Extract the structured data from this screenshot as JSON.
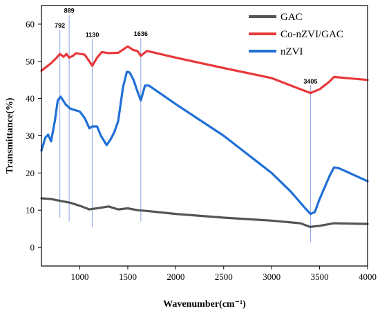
{
  "chart_data": {
    "type": "line",
    "xlabel": "Wavenumber(cm⁻¹)",
    "ylabel": "Transmittance(%)",
    "xlim": [
      600,
      4000
    ],
    "ylim": [
      -5,
      65
    ],
    "x_ticks": [
      1000,
      1500,
      2000,
      2500,
      3000,
      3500,
      4000
    ],
    "y_ticks": [
      0,
      10,
      20,
      30,
      40,
      50,
      60
    ],
    "grid": false,
    "legend_position": "top-right",
    "series": [
      {
        "name": "GAC",
        "color": "#555555",
        "points": [
          [
            600,
            13.2
          ],
          [
            700,
            13
          ],
          [
            800,
            12.5
          ],
          [
            900,
            12
          ],
          [
            1000,
            11.2
          ],
          [
            1100,
            10.2
          ],
          [
            1200,
            10.6
          ],
          [
            1300,
            11
          ],
          [
            1400,
            10.2
          ],
          [
            1500,
            10.5
          ],
          [
            1600,
            10
          ],
          [
            1700,
            9.8
          ],
          [
            2000,
            9
          ],
          [
            2500,
            8
          ],
          [
            3000,
            7.2
          ],
          [
            3300,
            6.5
          ],
          [
            3400,
            5.5
          ],
          [
            3500,
            5.8
          ],
          [
            3650,
            6.5
          ],
          [
            4000,
            6.3
          ]
        ]
      },
      {
        "name": "Co-nZVI/GAC",
        "color": "#e8383a",
        "points": [
          [
            600,
            47.5
          ],
          [
            700,
            49.5
          ],
          [
            760,
            51
          ],
          [
            792,
            52
          ],
          [
            830,
            51.2
          ],
          [
            860,
            52
          ],
          [
            889,
            51
          ],
          [
            930,
            51.5
          ],
          [
            960,
            52.2
          ],
          [
            1050,
            51.8
          ],
          [
            1100,
            50
          ],
          [
            1130,
            48.8
          ],
          [
            1180,
            51
          ],
          [
            1230,
            52.5
          ],
          [
            1300,
            52.2
          ],
          [
            1400,
            52.3
          ],
          [
            1500,
            54
          ],
          [
            1560,
            53
          ],
          [
            1600,
            52.8
          ],
          [
            1636,
            51.5
          ],
          [
            1700,
            52.8
          ],
          [
            2000,
            51
          ],
          [
            2500,
            48.2
          ],
          [
            3000,
            45.5
          ],
          [
            3200,
            43.5
          ],
          [
            3405,
            41.5
          ],
          [
            3500,
            42.5
          ],
          [
            3600,
            44.5
          ],
          [
            3650,
            45.8
          ],
          [
            4000,
            45
          ]
        ]
      },
      {
        "name": "nZVI",
        "color": "#1f6fd6",
        "points": [
          [
            600,
            26
          ],
          [
            640,
            29.5
          ],
          [
            670,
            30.3
          ],
          [
            700,
            28.5
          ],
          [
            740,
            34
          ],
          [
            770,
            39.5
          ],
          [
            800,
            40.5
          ],
          [
            850,
            38.5
          ],
          [
            900,
            37.3
          ],
          [
            1000,
            36.5
          ],
          [
            1050,
            34.8
          ],
          [
            1100,
            32
          ],
          [
            1130,
            32.5
          ],
          [
            1180,
            32.5
          ],
          [
            1220,
            30
          ],
          [
            1280,
            27.5
          ],
          [
            1320,
            29
          ],
          [
            1360,
            31
          ],
          [
            1400,
            34
          ],
          [
            1450,
            43
          ],
          [
            1490,
            47.2
          ],
          [
            1520,
            47
          ],
          [
            1560,
            45
          ],
          [
            1600,
            42
          ],
          [
            1636,
            39.5
          ],
          [
            1680,
            43.5
          ],
          [
            1720,
            43.5
          ],
          [
            2000,
            38.5
          ],
          [
            2500,
            30
          ],
          [
            3000,
            20
          ],
          [
            3200,
            15
          ],
          [
            3350,
            10.5
          ],
          [
            3405,
            9
          ],
          [
            3450,
            9.5
          ],
          [
            3500,
            13
          ],
          [
            3600,
            19
          ],
          [
            3650,
            21.5
          ],
          [
            3700,
            21.3
          ],
          [
            4000,
            17.8
          ]
        ]
      }
    ],
    "annotations": [
      {
        "label": "792",
        "x": 792,
        "y_top": 58.5,
        "y_bottom": 8
      },
      {
        "label": "889",
        "x": 889,
        "y_top": 62.5,
        "y_bottom": 7
      },
      {
        "label": "1130",
        "x": 1130,
        "y_top": 56,
        "y_bottom": 5.5
      },
      {
        "label": "1636",
        "x": 1636,
        "y_top": 56.3,
        "y_bottom": 7
      },
      {
        "label": "3405",
        "x": 3405,
        "y_top": 43.5,
        "y_bottom": 1.5
      }
    ]
  }
}
